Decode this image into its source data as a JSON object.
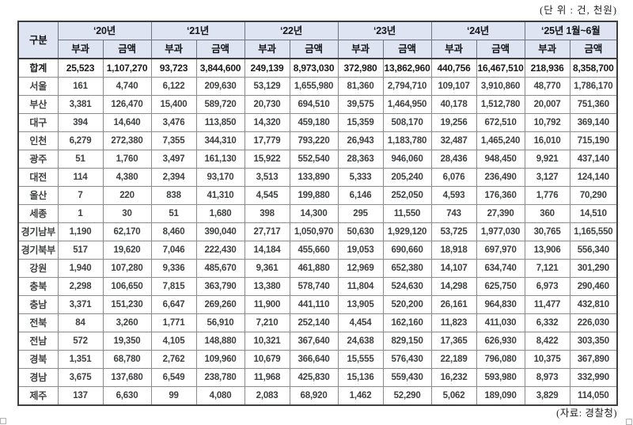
{
  "meta": {
    "unit_note": "(단 위 : 건, 천원)",
    "source_note": "(자료: 경찰청)"
  },
  "colors": {
    "header_bg": "#dfe4f2",
    "header_border": "#6d7383",
    "inner_border": "#8b8b8b",
    "outer_border": "#3f3f3f"
  },
  "table": {
    "corner_label": "구분",
    "year_groups": [
      "‘20년",
      "‘21년",
      "‘22년",
      "‘23년",
      "‘24년",
      "‘25년 1월~6월"
    ],
    "sub_headers": [
      "부과",
      "금액"
    ],
    "rows": [
      {
        "label": "합계",
        "total": true,
        "values": [
          "25,523",
          "1,107,270",
          "93,723",
          "3,844,600",
          "249,139",
          "8,973,030",
          "372,980",
          "13,862,960",
          "440,756",
          "16,467,510",
          "218,936",
          "8,358,700"
        ]
      },
      {
        "label": "서울",
        "values": [
          "161",
          "4,740",
          "6,122",
          "209,630",
          "53,129",
          "1,655,980",
          "81,360",
          "2,794,710",
          "109,107",
          "3,910,860",
          "48,770",
          "1,786,170"
        ]
      },
      {
        "label": "부산",
        "values": [
          "3,381",
          "126,470",
          "15,400",
          "589,720",
          "20,730",
          "694,510",
          "39,575",
          "1,464,950",
          "40,178",
          "1,512,780",
          "20,007",
          "751,360"
        ]
      },
      {
        "label": "대구",
        "values": [
          "394",
          "14,640",
          "3,476",
          "113,850",
          "14,320",
          "459,180",
          "15,359",
          "508,170",
          "19,256",
          "672,510",
          "10,792",
          "369,140"
        ]
      },
      {
        "label": "인천",
        "values": [
          "6,279",
          "272,380",
          "7,355",
          "344,310",
          "17,779",
          "793,220",
          "26,943",
          "1,183,780",
          "32,487",
          "1,465,240",
          "16,010",
          "715,190"
        ]
      },
      {
        "label": "광주",
        "values": [
          "51",
          "1,760",
          "3,497",
          "161,130",
          "15,922",
          "552,540",
          "28,363",
          "946,060",
          "28,436",
          "948,450",
          "9,921",
          "437,140"
        ]
      },
      {
        "label": "대전",
        "values": [
          "114",
          "4,380",
          "2,394",
          "93,170",
          "3,513",
          "133,890",
          "5,333",
          "205,240",
          "6,076",
          "236,490",
          "3,127",
          "124,140"
        ]
      },
      {
        "label": "울산",
        "values": [
          "7",
          "220",
          "838",
          "41,310",
          "4,545",
          "199,880",
          "6,146",
          "252,050",
          "4,593",
          "176,360",
          "1,776",
          "70,290"
        ]
      },
      {
        "label": "세종",
        "values": [
          "1",
          "30",
          "51",
          "1,680",
          "398",
          "14,300",
          "295",
          "11,550",
          "743",
          "27,390",
          "360",
          "14,510"
        ]
      },
      {
        "label": "경기남부",
        "values": [
          "1,190",
          "62,170",
          "8,460",
          "390,040",
          "27,717",
          "1,050,970",
          "50,630",
          "1,929,120",
          "53,725",
          "1,977,030",
          "30,765",
          "1,165,550"
        ]
      },
      {
        "label": "경기북부",
        "values": [
          "517",
          "19,620",
          "7,046",
          "222,430",
          "14,184",
          "455,660",
          "19,053",
          "690,660",
          "18,918",
          "697,970",
          "13,906",
          "556,340"
        ]
      },
      {
        "label": "강원",
        "values": [
          "1,940",
          "107,280",
          "9,336",
          "485,670",
          "9,361",
          "461,880",
          "12,969",
          "652,380",
          "14,107",
          "634,740",
          "7,121",
          "301,290"
        ]
      },
      {
        "label": "충북",
        "values": [
          "2,298",
          "106,650",
          "7,815",
          "363,790",
          "13,380",
          "578,740",
          "11,804",
          "524,630",
          "14,298",
          "625,750",
          "6,973",
          "290,460"
        ]
      },
      {
        "label": "충남",
        "values": [
          "3,371",
          "151,230",
          "6,647",
          "269,260",
          "11,900",
          "441,110",
          "13,905",
          "520,200",
          "26,161",
          "964,830",
          "11,477",
          "432,810"
        ]
      },
      {
        "label": "전북",
        "values": [
          "84",
          "3,260",
          "1,771",
          "56,910",
          "7,210",
          "252,140",
          "4,454",
          "162,160",
          "11,823",
          "411,030",
          "6,332",
          "226,030"
        ]
      },
      {
        "label": "전남",
        "values": [
          "572",
          "19,350",
          "4,105",
          "148,880",
          "10,321",
          "367,640",
          "24,638",
          "829,150",
          "17,365",
          "626,930",
          "8,422",
          "303,350"
        ]
      },
      {
        "label": "경북",
        "values": [
          "1,351",
          "68,780",
          "2,762",
          "109,960",
          "10,679",
          "366,640",
          "15,555",
          "576,430",
          "22,189",
          "796,080",
          "10,375",
          "367,890"
        ]
      },
      {
        "label": "경남",
        "values": [
          "3,675",
          "137,680",
          "6,549",
          "238,780",
          "11,968",
          "425,830",
          "15,136",
          "559,430",
          "16,232",
          "593,980",
          "8,973",
          "332,990"
        ]
      },
      {
        "label": "제주",
        "values": [
          "137",
          "6,630",
          "99",
          "4,080",
          "2,083",
          "68,920",
          "1,462",
          "52,290",
          "5,062",
          "189,090",
          "3,829",
          "114,050"
        ]
      }
    ]
  }
}
